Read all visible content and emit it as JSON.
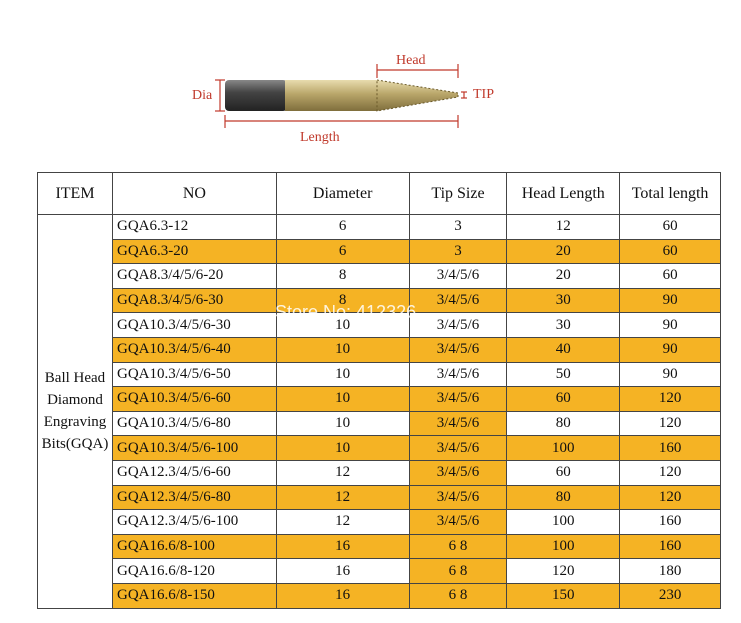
{
  "diagram": {
    "dia": "Dia",
    "head": "Head",
    "tip": "TIP",
    "length": "Length"
  },
  "watermark": "Store No: 412326",
  "table": {
    "headers": [
      "ITEM",
      "NO",
      "Diameter",
      "Tip Size",
      "Head Length",
      "Total length"
    ],
    "item": "Ball Head Diamond Engraving Bits(GQA)",
    "rows": [
      [
        "GQA6.3-12",
        "6",
        "3",
        "12",
        "60"
      ],
      [
        "GQA6.3-20",
        "6",
        "3",
        "20",
        "60"
      ],
      [
        "GQA8.3/4/5/6-20",
        "8",
        "3/4/5/6",
        "20",
        "60"
      ],
      [
        "GQA8.3/4/5/6-30",
        "8",
        "3/4/5/6",
        "30",
        "90"
      ],
      [
        "GQA10.3/4/5/6-30",
        "10",
        "3/4/5/6",
        "30",
        "90"
      ],
      [
        "GQA10.3/4/5/6-40",
        "10",
        "3/4/5/6",
        "40",
        "90"
      ],
      [
        "GQA10.3/4/5/6-50",
        "10",
        "3/4/5/6",
        "50",
        "90"
      ],
      [
        "GQA10.3/4/5/6-60",
        "10",
        "3/4/5/6",
        "60",
        "120"
      ],
      [
        "GQA10.3/4/5/6-80",
        "10",
        "3/4/5/6",
        "80",
        "120"
      ],
      [
        "GQA10.3/4/5/6-100",
        "10",
        "3/4/5/6",
        "100",
        "160"
      ],
      [
        "GQA12.3/4/5/6-60",
        "12",
        "3/4/5/6",
        "60",
        "120"
      ],
      [
        "GQA12.3/4/5/6-80",
        "12",
        "3/4/5/6",
        "80",
        "120"
      ],
      [
        "GQA12.3/4/5/6-100",
        "12",
        "3/4/5/6",
        "100",
        "160"
      ],
      [
        "GQA16.6/8-100",
        "16",
        "6 8",
        "100",
        "160"
      ],
      [
        "GQA16.6/8-120",
        "16",
        "6 8",
        "120",
        "180"
      ],
      [
        "GQA16.6/8-150",
        "16",
        "6 8",
        "150",
        "230"
      ]
    ]
  }
}
